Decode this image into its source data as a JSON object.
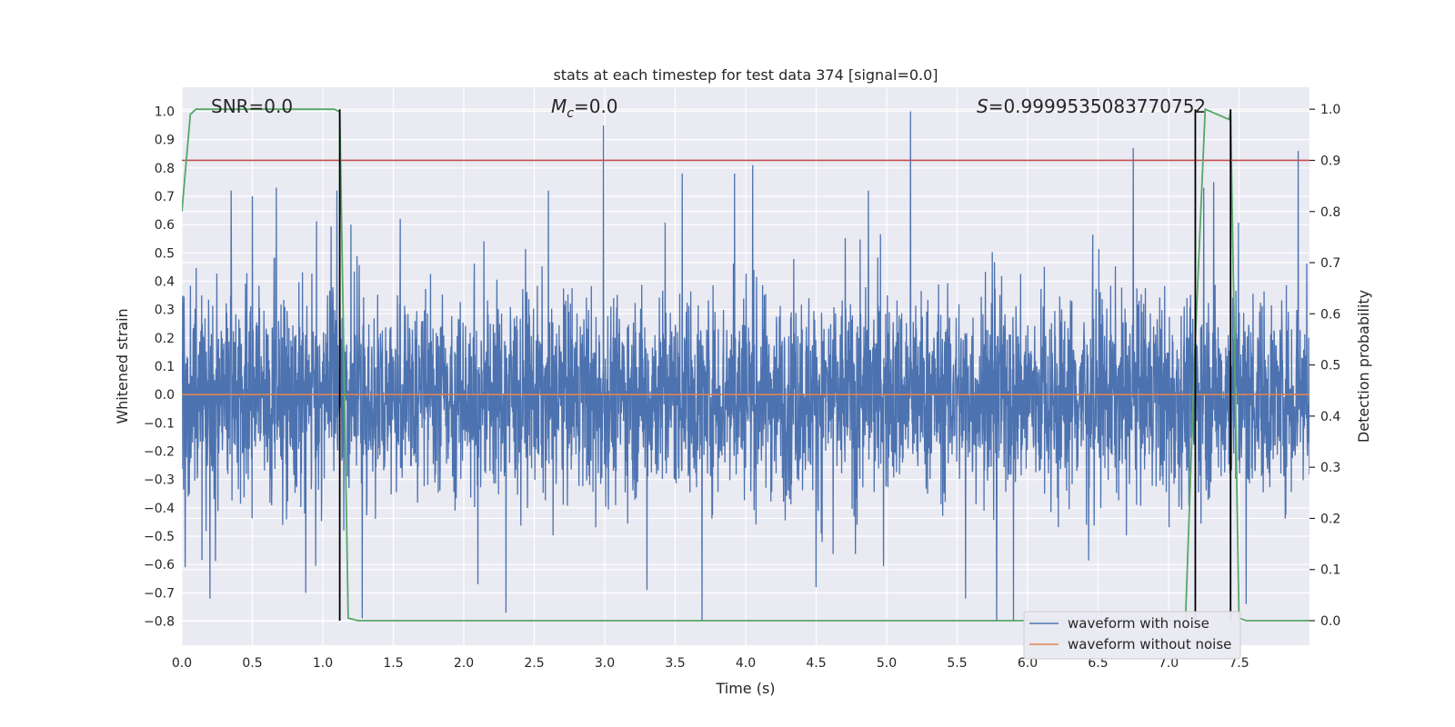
{
  "chart_data": {
    "type": "line",
    "title": "stats at each timestep for test data 374 [signal=0.0]",
    "xlabel": "Time (s)",
    "ylabel_left": "Whitened strain",
    "ylabel_right": "Detection probability",
    "xlim": [
      0.0,
      8.0
    ],
    "ylim_left": [
      -0.885,
      1.085
    ],
    "ylim_right": [
      -0.048,
      1.043
    ],
    "xticks": [
      "0.0",
      "0.5",
      "1.0",
      "1.5",
      "2.0",
      "2.5",
      "3.0",
      "3.5",
      "4.0",
      "4.5",
      "5.0",
      "5.5",
      "6.0",
      "6.5",
      "7.0",
      "7.5"
    ],
    "yticks_left": [
      "1.0",
      "0.9",
      "0.8",
      "0.7",
      "0.6",
      "0.5",
      "0.4",
      "0.3",
      "0.2",
      "0.1",
      "0.0",
      "−0.1",
      "−0.2",
      "−0.3",
      "−0.4",
      "−0.5",
      "−0.6",
      "−0.7",
      "−0.8"
    ],
    "yticks_right": [
      "1.0",
      "0.9",
      "0.8",
      "0.7",
      "0.6",
      "0.5",
      "0.4",
      "0.3",
      "0.2",
      "0.1",
      "0.0"
    ],
    "grid": true,
    "annotations": {
      "snr": "SNR=0.0",
      "mc_symbol": "M",
      "mc_sub": "c",
      "mc_value": "=0.0",
      "s_symbol": "S",
      "s_value": "=0.9999535083770752"
    },
    "legend": {
      "placement": "lower-right",
      "entries": [
        "waveform with noise",
        "waveform without noise"
      ]
    },
    "colors": {
      "noise": "#4c72b0",
      "clean": "#dd8452",
      "probability": "#55a868",
      "threshold": "#c44e52",
      "markers": "#000000",
      "axes_bg": "#eaeaf2"
    },
    "threshold_probability": 0.9,
    "marker_times": [
      1.12,
      7.19,
      7.44
    ],
    "detection_probability": {
      "x": [
        0.0,
        0.06,
        0.1,
        0.2,
        1.08,
        1.12,
        1.18,
        1.25,
        7.12,
        7.19,
        7.26,
        7.43,
        7.44,
        7.5,
        7.55,
        8.0
      ],
      "y": [
        0.8,
        0.99,
        1.0,
        1.0,
        1.0,
        0.995,
        0.005,
        0.0,
        0.0,
        0.55,
        1.0,
        0.98,
        0.995,
        0.005,
        0.0,
        0.0
      ]
    },
    "series": [
      {
        "name": "waveform with noise",
        "description_values": {
          "typical_abs_amplitude": 0.28,
          "peak_max": 1.0,
          "peak_min": -0.8,
          "n_samples": 4096
        }
      },
      {
        "name": "waveform without noise",
        "values_constant": 0.0
      }
    ],
    "noise_peaks": {
      "x": [
        0.2,
        0.35,
        0.5,
        0.67,
        0.88,
        1.1,
        1.2,
        1.28,
        1.55,
        2.1,
        2.3,
        2.6,
        2.99,
        3.3,
        3.55,
        3.69,
        3.92,
        4.05,
        4.5,
        4.87,
        5.17,
        5.56,
        5.78,
        5.9,
        6.75,
        7.25,
        7.32,
        7.55,
        7.92
      ],
      "y": [
        -0.72,
        0.72,
        0.7,
        0.73,
        -0.7,
        0.72,
        0.6,
        -0.79,
        0.62,
        -0.67,
        -0.77,
        0.72,
        0.95,
        -0.69,
        0.78,
        -0.8,
        0.78,
        0.81,
        -0.68,
        0.72,
        1.0,
        -0.72,
        -0.8,
        -0.8,
        0.87,
        0.73,
        0.75,
        -0.74,
        0.86
      ]
    }
  }
}
